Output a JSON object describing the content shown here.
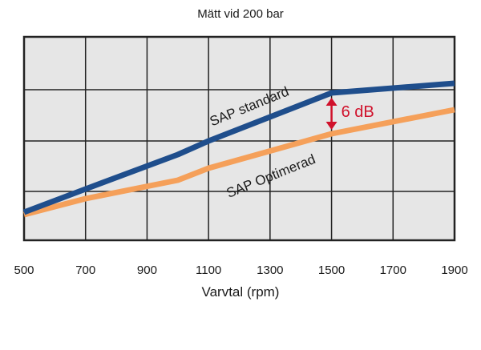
{
  "chart_data": {
    "type": "line",
    "title": "Mätt vid 200 bar",
    "xlabel": "Varvtal (rpm)",
    "ylabel": "",
    "xlim": [
      500,
      1900
    ],
    "x_ticks": [
      500,
      700,
      900,
      1100,
      1300,
      1500,
      1700,
      1900
    ],
    "grid": true,
    "legend": "inline labels",
    "series": [
      {
        "name": "SAP standard",
        "color": "#1f4e8c",
        "points": [
          [
            500,
            265
          ],
          [
            700,
            236
          ],
          [
            1000,
            193
          ],
          [
            1100,
            176
          ],
          [
            1500,
            116
          ],
          [
            1900,
            104
          ]
        ]
      },
      {
        "name": "SAP Optimerad",
        "color": "#f5a05a",
        "points": [
          [
            500,
            268
          ],
          [
            700,
            248
          ],
          [
            1000,
            225
          ],
          [
            1100,
            210
          ],
          [
            1500,
            167
          ],
          [
            1900,
            137
          ]
        ]
      }
    ],
    "annotation": {
      "text": "6 dB",
      "x": 1500,
      "color": "#d0112b"
    }
  }
}
